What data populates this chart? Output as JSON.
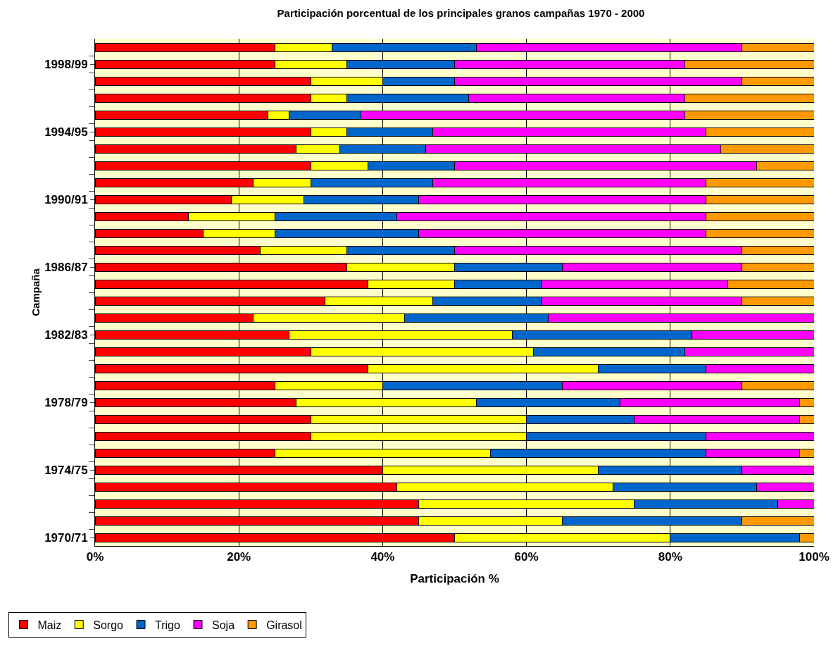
{
  "chart_data": {
    "type": "bar",
    "orientation": "horizontal",
    "stacked": true,
    "title": "Participación porcentual de los principales granos campañas 1970 - 2000",
    "xlabel": "Participación %",
    "ylabel": "Campaña",
    "categories": [
      null,
      "1998/99",
      null,
      null,
      null,
      "1994/95",
      null,
      null,
      null,
      "1990/91",
      null,
      null,
      null,
      "1986/87",
      null,
      null,
      null,
      "1982/83",
      null,
      null,
      null,
      "1978/79",
      null,
      null,
      null,
      "1974/75",
      null,
      null,
      null,
      "1970/71"
    ],
    "series": [
      {
        "name": "Maiz",
        "color": "#ff0000",
        "values": [
          25,
          25,
          30,
          30,
          24,
          30,
          28,
          30,
          22,
          19,
          13,
          15,
          23,
          35,
          38,
          32,
          22,
          27,
          30,
          38,
          25,
          28,
          30,
          30,
          25,
          40,
          42,
          45,
          45,
          50
        ]
      },
      {
        "name": "Sorgo",
        "color": "#ffff00",
        "values": [
          8,
          10,
          10,
          5,
          3,
          5,
          6,
          8,
          8,
          10,
          12,
          10,
          12,
          15,
          12,
          15,
          21,
          31,
          31,
          32,
          15,
          25,
          30,
          30,
          30,
          30,
          30,
          30,
          20,
          30
        ]
      },
      {
        "name": "Trigo",
        "color": "#0066cc",
        "values": [
          20,
          15,
          10,
          17,
          10,
          12,
          12,
          12,
          17,
          16,
          17,
          20,
          15,
          15,
          12,
          15,
          20,
          25,
          21,
          15,
          25,
          20,
          15,
          25,
          30,
          20,
          20,
          20,
          25,
          18
        ]
      },
      {
        "name": "Soja",
        "color": "#ff00ff",
        "values": [
          37,
          32,
          40,
          30,
          45,
          38,
          41,
          42,
          38,
          40,
          43,
          40,
          40,
          25,
          26,
          28,
          37,
          17,
          18,
          15,
          25,
          25,
          23,
          15,
          13,
          10,
          8,
          5,
          0,
          0
        ]
      },
      {
        "name": "Girasol",
        "color": "#ff9900",
        "values": [
          10,
          18,
          10,
          18,
          18,
          15,
          13,
          8,
          15,
          15,
          15,
          15,
          10,
          10,
          12,
          10,
          0,
          0,
          0,
          0,
          10,
          2,
          2,
          0,
          2,
          0,
          0,
          0,
          10,
          2
        ]
      }
    ],
    "xlim": [
      0,
      100
    ],
    "xticks": [
      {
        "value": 0,
        "label": "0%"
      },
      {
        "value": 20,
        "label": "20%"
      },
      {
        "value": 40,
        "label": "40%"
      },
      {
        "value": 60,
        "label": "60%"
      },
      {
        "value": 80,
        "label": "80%"
      },
      {
        "value": 100,
        "label": "100%"
      }
    ],
    "grid": "x",
    "legend": "bottom left"
  }
}
